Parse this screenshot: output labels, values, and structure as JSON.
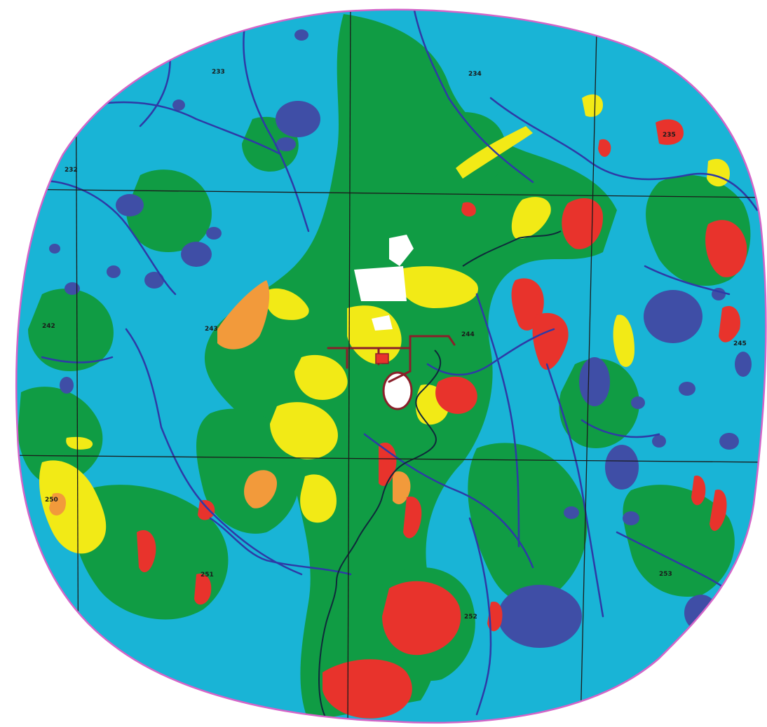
{
  "map": {
    "colors": {
      "background": "#ffffff",
      "boundary": "#d464c8",
      "wetland": "#19b4d6",
      "forest": "#109c44",
      "lake": "#3f4ea6",
      "river": "#2e3aa6",
      "stream_dark": "#0f2a3a",
      "burn_red": "#e8332c",
      "open_yellow": "#f2ea16",
      "shrub_orange": "#f29a3b",
      "developed_white": "#ffffff",
      "infrastructure": "#8a1f2a",
      "grid_line": "#1b1b1b"
    },
    "grid_labels": {
      "g233": "233",
      "g234": "234",
      "g235": "235",
      "g232": "232",
      "g242": "242",
      "g243": "243",
      "g244": "244",
      "g245": "245",
      "g250": "250",
      "g251": "251",
      "g252": "252",
      "g253": "253"
    }
  }
}
